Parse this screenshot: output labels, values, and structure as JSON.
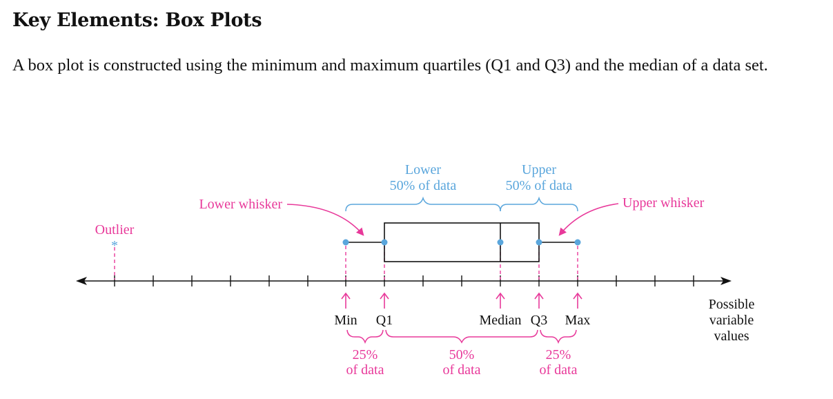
{
  "heading": "Key Elements: Box Plots",
  "description": "A box plot is constructed using the minimum and maximum quartiles (Q1 and Q3) and the median of a data set.",
  "colors": {
    "pink": "#e8399a",
    "blue": "#5aa6dc",
    "black": "#111111"
  },
  "diagram": {
    "outlier": "Outlier",
    "outlier_symbol": "*",
    "lower_whisker": "Lower whisker",
    "upper_whisker": "Upper whisker",
    "lower_half": {
      "line1": "Lower",
      "line2": "50% of data"
    },
    "upper_half": {
      "line1": "Upper",
      "line2": "50% of data"
    },
    "axis_labels": {
      "min": "Min",
      "q1": "Q1",
      "median": "Median",
      "q3": "Q3",
      "max": "Max"
    },
    "axis_title": {
      "line1": "Possible",
      "line2": "variable",
      "line3": "values"
    },
    "segments": [
      {
        "line1": "25%",
        "line2": "of data"
      },
      {
        "line1": "50%",
        "line2": "of data"
      },
      {
        "line1": "25%",
        "line2": "of data"
      }
    ]
  }
}
